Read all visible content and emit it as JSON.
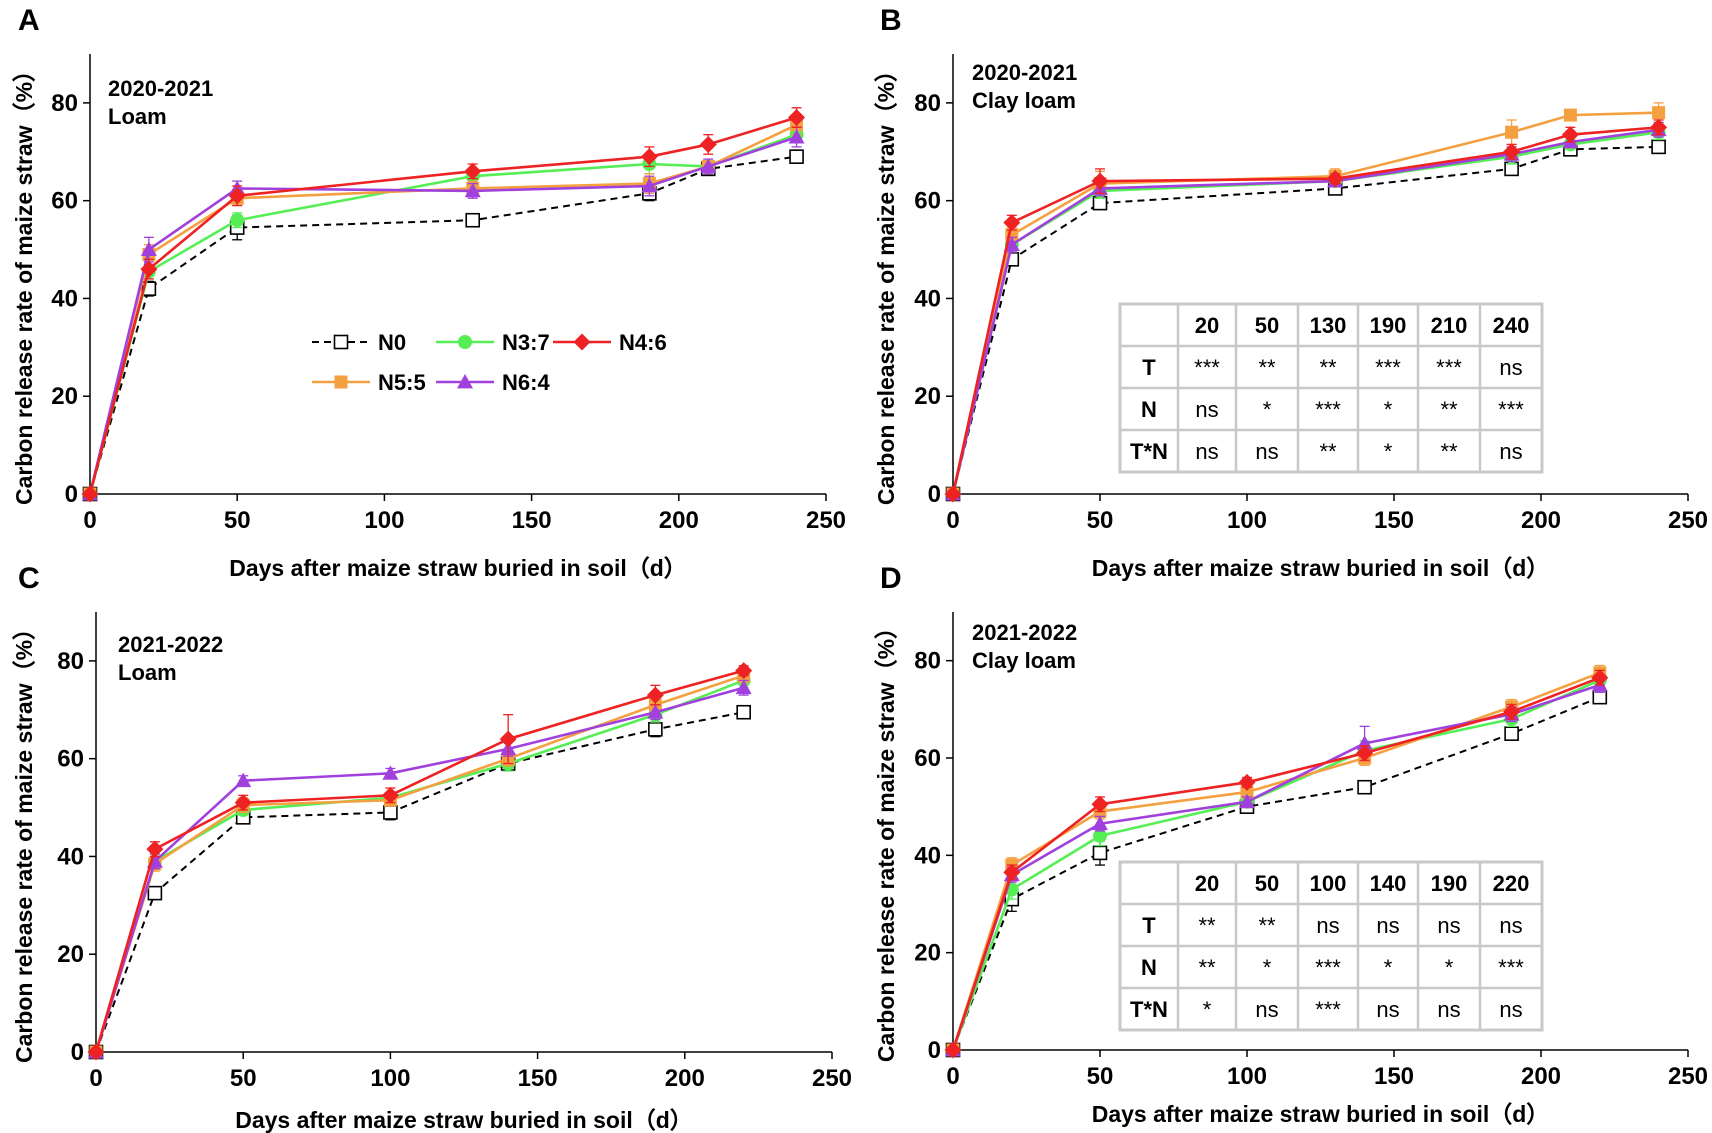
{
  "figure": {
    "ylabel": "Carbon release rate of maize straw（%）",
    "xlabel": "Days after maize straw buried in soil（d）",
    "colors": {
      "N0": "#000000",
      "N3:7": "#55ee55",
      "N4:6": "#ee2222",
      "N5:5": "#f5a040",
      "N6:4": "#a040dd"
    },
    "legend": {
      "entries": [
        {
          "name": "N0",
          "marker": "square-open",
          "dash": true
        },
        {
          "name": "N3:7",
          "marker": "circle"
        },
        {
          "name": "N4:6",
          "marker": "diamond"
        },
        {
          "name": "N5:5",
          "marker": "square"
        },
        {
          "name": "N6:4",
          "marker": "triangle"
        }
      ]
    }
  },
  "chart_data": [
    {
      "panel": "A",
      "type": "line",
      "title": "2020-2021",
      "subtitle": "Loam",
      "xlabel": "Days after maize straw buried in soil（d）",
      "ylabel": "Carbon release rate of maize straw（%）",
      "xlim": [
        0,
        250
      ],
      "ylim": [
        0,
        90
      ],
      "xticks": [
        0,
        50,
        100,
        150,
        200,
        250
      ],
      "yticks": [
        0,
        20,
        40,
        60,
        80
      ],
      "x": [
        0,
        20,
        50,
        130,
        190,
        210,
        240
      ],
      "series": [
        {
          "name": "N0",
          "values": [
            0,
            42,
            54.5,
            56,
            61.5,
            66.5,
            69
          ],
          "errors": [
            0,
            1.5,
            2.5,
            0.8,
            1.5,
            1,
            0.8
          ]
        },
        {
          "name": "N3:7",
          "values": [
            0,
            45.5,
            56,
            65,
            67.5,
            67,
            73.5
          ],
          "errors": [
            0,
            1.5,
            1.5,
            1.5,
            2,
            1,
            1.5
          ]
        },
        {
          "name": "N4:6",
          "values": [
            0,
            46,
            61,
            66,
            69,
            71.5,
            77
          ],
          "errors": [
            0,
            2,
            2,
            1.5,
            2,
            2,
            2
          ]
        },
        {
          "name": "N5:5",
          "values": [
            0,
            49,
            60.5,
            62.5,
            63.5,
            67,
            75.5
          ],
          "errors": [
            0,
            2,
            1.5,
            1.5,
            2,
            1,
            2
          ]
        },
        {
          "name": "N6:4",
          "values": [
            0,
            50,
            62.5,
            62,
            63,
            67,
            73
          ],
          "errors": [
            0,
            2.5,
            1.5,
            1.5,
            2,
            1.5,
            2
          ]
        }
      ],
      "legend": "center-left"
    },
    {
      "panel": "B",
      "type": "line",
      "title": "2020-2021",
      "subtitle": "Clay loam",
      "xlabel": "Days after maize straw buried in soil（d）",
      "ylabel": "Carbon release rate of  maize straw（%）",
      "xlim": [
        0,
        250
      ],
      "ylim": [
        0,
        90
      ],
      "xticks": [
        0,
        50,
        100,
        150,
        200,
        250
      ],
      "yticks": [
        0,
        20,
        40,
        60,
        80
      ],
      "x": [
        0,
        20,
        50,
        130,
        190,
        210,
        240
      ],
      "series": [
        {
          "name": "N0",
          "values": [
            0,
            48,
            59.5,
            62.5,
            66.5,
            70.5,
            71
          ],
          "errors": [
            0,
            1,
            1,
            1,
            1,
            1,
            1
          ]
        },
        {
          "name": "N3:7",
          "values": [
            0,
            51,
            62,
            64,
            69,
            71.5,
            74
          ],
          "errors": [
            0,
            1.5,
            1.5,
            1,
            1.5,
            1,
            1.5
          ]
        },
        {
          "name": "N4:6",
          "values": [
            0,
            55.5,
            64,
            64.5,
            70,
            73.5,
            75
          ],
          "errors": [
            0,
            1.5,
            2.5,
            1,
            1.5,
            1.5,
            1.5
          ]
        },
        {
          "name": "N5:5",
          "values": [
            0,
            53,
            63.5,
            65,
            74,
            77.5,
            78
          ],
          "errors": [
            0,
            1.5,
            2.5,
            1.5,
            2.5,
            1,
            2
          ]
        },
        {
          "name": "N6:4",
          "values": [
            0,
            51,
            62.5,
            64,
            69.5,
            72,
            74.5
          ],
          "errors": [
            0,
            1.5,
            1.5,
            1,
            1.5,
            1,
            1.5
          ]
        }
      ],
      "table": {
        "header": [
          "",
          "20",
          "50",
          "130",
          "190",
          "210",
          "240"
        ],
        "rows": [
          [
            "T",
            "***",
            "**",
            "**",
            "***",
            "***",
            "ns"
          ],
          [
            "N",
            "ns",
            "*",
            "***",
            "*",
            "**",
            "***"
          ],
          [
            "T*N",
            "ns",
            "ns",
            "**",
            "*",
            "**",
            "ns"
          ]
        ]
      }
    },
    {
      "panel": "C",
      "type": "line",
      "title": "2021-2022",
      "subtitle": "Loam",
      "xlabel": "Days after maize straw buried in soil（d）",
      "ylabel": "Carbon release rate of maize straw（%）",
      "xlim": [
        0,
        250
      ],
      "ylim": [
        0,
        90
      ],
      "xticks": [
        0,
        50,
        100,
        150,
        200,
        250
      ],
      "yticks": [
        0,
        20,
        40,
        60,
        80
      ],
      "x": [
        0,
        20,
        50,
        100,
        140,
        190,
        220
      ],
      "series": [
        {
          "name": "N0",
          "values": [
            0,
            32.5,
            48,
            49,
            59,
            66,
            69.5
          ],
          "errors": [
            0,
            1,
            1,
            1.5,
            1.5,
            1.5,
            1
          ]
        },
        {
          "name": "N3:7",
          "values": [
            0,
            39,
            49.5,
            52,
            59,
            69,
            76
          ],
          "errors": [
            0,
            1.5,
            1,
            1,
            1.5,
            1.5,
            1.5
          ]
        },
        {
          "name": "N4:6",
          "values": [
            0,
            41.5,
            51,
            52.5,
            64,
            73,
            78
          ],
          "errors": [
            0,
            1.5,
            1.5,
            1.5,
            5,
            2,
            1
          ]
        },
        {
          "name": "N5:5",
          "values": [
            0,
            38.5,
            50.5,
            51.5,
            60,
            71,
            77
          ],
          "errors": [
            0,
            1.5,
            1.5,
            1,
            1.5,
            1.5,
            1.5
          ]
        },
        {
          "name": "N6:4",
          "values": [
            0,
            39,
            55.5,
            57,
            62,
            69.5,
            74.5
          ],
          "errors": [
            0,
            1.5,
            1,
            1,
            1.5,
            1.5,
            1.5
          ]
        }
      ]
    },
    {
      "panel": "D",
      "type": "line",
      "title": "2021-2022",
      "subtitle": "Clay loam",
      "xlabel": "Days after maize straw buried in soil（d）",
      "ylabel": "Carbon release rate of maize straw（%）",
      "xlim": [
        0,
        250
      ],
      "ylim": [
        0,
        90
      ],
      "xticks": [
        0,
        50,
        100,
        150,
        200,
        250
      ],
      "yticks": [
        0,
        20,
        40,
        60,
        80
      ],
      "x": [
        0,
        20,
        50,
        100,
        140,
        190,
        220
      ],
      "series": [
        {
          "name": "N0",
          "values": [
            0,
            31,
            40.5,
            50,
            54,
            65,
            72.5
          ],
          "errors": [
            0,
            2.5,
            2.5,
            1,
            1,
            1,
            1
          ]
        },
        {
          "name": "N3:7",
          "values": [
            0,
            33,
            44,
            51,
            61.5,
            68,
            76
          ],
          "errors": [
            0,
            2,
            2,
            1,
            2,
            1.5,
            1.5
          ]
        },
        {
          "name": "N4:6",
          "values": [
            0,
            36.5,
            50.5,
            55,
            61,
            69.5,
            76.5
          ],
          "errors": [
            0,
            1.5,
            1.5,
            1,
            1.5,
            1.5,
            1.5
          ]
        },
        {
          "name": "N5:5",
          "values": [
            0,
            38,
            49,
            53,
            60,
            70.5,
            77.5
          ],
          "errors": [
            0,
            1.5,
            1.5,
            1,
            1.5,
            1.5,
            1.5
          ]
        },
        {
          "name": "N6:4",
          "values": [
            0,
            36,
            46.5,
            51,
            63,
            69,
            75
          ],
          "errors": [
            0,
            1.5,
            1.5,
            1,
            3.5,
            1.5,
            1.5
          ]
        }
      ],
      "table": {
        "header": [
          "",
          "20",
          "50",
          "100",
          "140",
          "190",
          "220"
        ],
        "rows": [
          [
            "T",
            "**",
            "**",
            "ns",
            "ns",
            "ns",
            "ns"
          ],
          [
            "N",
            "**",
            "*",
            "***",
            "*",
            "*",
            "***"
          ],
          [
            "T*N",
            "*",
            "ns",
            "***",
            "ns",
            "ns",
            "ns"
          ]
        ]
      }
    }
  ]
}
